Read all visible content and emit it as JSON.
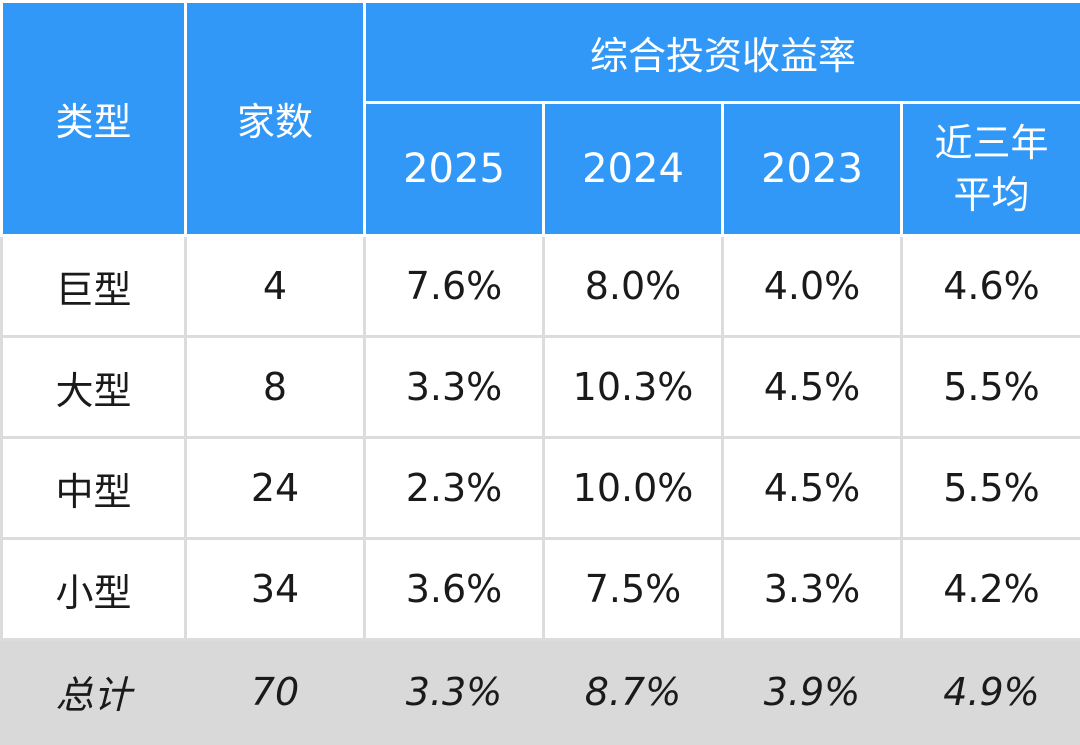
{
  "chart_data": {
    "type": "table",
    "header": {
      "type_label": "类型",
      "count_label": "家数",
      "group_label": "综合投资收益率",
      "years": [
        "2025",
        "2024",
        "2023"
      ],
      "avg_label_line1": "近三年",
      "avg_label_line2": "平均"
    },
    "rows": [
      {
        "type": "巨型",
        "count": "4",
        "y2025": "7.6%",
        "y2024": "8.0%",
        "y2023": "4.0%",
        "avg": "4.6%"
      },
      {
        "type": "大型",
        "count": "8",
        "y2025": "3.3%",
        "y2024": "10.3%",
        "y2023": "4.5%",
        "avg": "5.5%"
      },
      {
        "type": "中型",
        "count": "24",
        "y2025": "2.3%",
        "y2024": "10.0%",
        "y2023": "4.5%",
        "avg": "5.5%"
      },
      {
        "type": "小型",
        "count": "34",
        "y2025": "3.6%",
        "y2024": "7.5%",
        "y2023": "3.3%",
        "avg": "4.2%"
      }
    ],
    "total": {
      "type": "总计",
      "count": "70",
      "y2025": "3.3%",
      "y2024": "8.7%",
      "y2023": "3.9%",
      "avg": "4.9%"
    }
  },
  "colors": {
    "header_bg": "#3298f8",
    "header_text": "#ffffff",
    "total_bg": "#d9d9d9",
    "grid": "#dcdcdc"
  }
}
